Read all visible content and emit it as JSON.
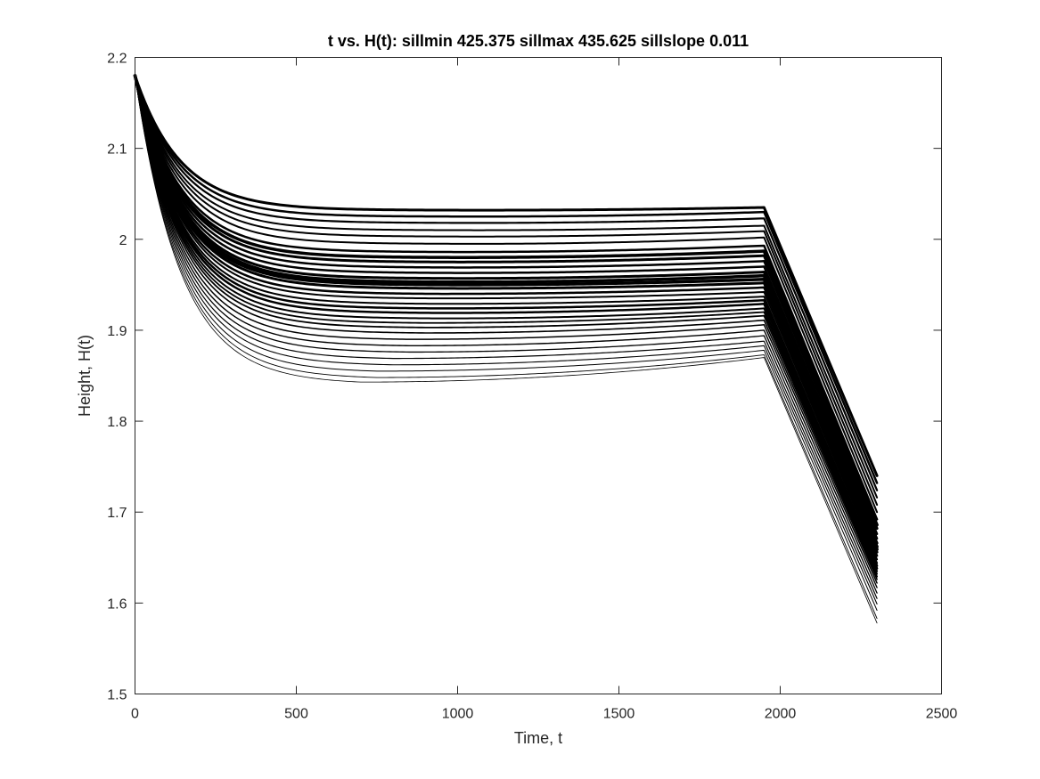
{
  "chart_data": {
    "type": "line",
    "title": "t vs. H(t): sillmin 425.375 sillmax 435.625 sillslope 0.011",
    "xlabel": "Time, t",
    "ylabel": "Height, H(t)",
    "xlim": [
      0,
      2500
    ],
    "ylim": [
      1.5,
      2.2
    ],
    "xticks": [
      0,
      500,
      1000,
      1500,
      2000,
      2500
    ],
    "yticks": [
      1.5,
      1.6,
      1.7,
      1.8,
      1.9,
      2.0,
      2.1,
      2.2
    ],
    "xtick_labels": [
      "0",
      "500",
      "1000",
      "1500",
      "2000",
      "2500"
    ],
    "ytick_labels": [
      "1.5",
      "1.6",
      "1.7",
      "1.8",
      "1.9",
      "2",
      "2.1",
      "2.2"
    ],
    "grid": false,
    "line_color": "#000000",
    "shared_points": {
      "t0": 0,
      "h0": 2.18,
      "t_break": 1950,
      "t_end": 2300
    },
    "series": [
      {
        "min_t": 1050,
        "h_min": 2.032,
        "h_break": 2.035,
        "h_end": 1.74,
        "width": 3.0
      },
      {
        "min_t": 1050,
        "h_min": 2.025,
        "h_break": 2.03,
        "h_end": 1.732,
        "width": 2.5
      },
      {
        "min_t": 1050,
        "h_min": 2.018,
        "h_break": 2.023,
        "h_end": 1.724,
        "width": 2.2
      },
      {
        "min_t": 1050,
        "h_min": 2.01,
        "h_break": 2.015,
        "h_end": 1.716,
        "width": 2.0
      },
      {
        "min_t": 1050,
        "h_min": 2.003,
        "h_break": 2.009,
        "h_end": 1.708,
        "width": 2.0
      },
      {
        "min_t": 1050,
        "h_min": 1.995,
        "h_break": 2.002,
        "h_end": 1.7,
        "width": 2.0
      },
      {
        "min_t": 1000,
        "h_min": 1.986,
        "h_break": 1.993,
        "h_end": 1.692,
        "width": 2.5
      },
      {
        "min_t": 1000,
        "h_min": 1.98,
        "h_break": 1.987,
        "h_end": 1.686,
        "width": 3.5
      },
      {
        "min_t": 1000,
        "h_min": 1.975,
        "h_break": 1.982,
        "h_end": 1.682,
        "width": 3.0
      },
      {
        "min_t": 1000,
        "h_min": 1.969,
        "h_break": 1.976,
        "h_end": 1.676,
        "width": 2.5
      },
      {
        "min_t": 1000,
        "h_min": 1.963,
        "h_break": 1.97,
        "h_end": 1.671,
        "width": 2.5
      },
      {
        "min_t": 1000,
        "h_min": 1.957,
        "h_break": 1.964,
        "h_end": 1.666,
        "width": 3.0
      },
      {
        "min_t": 1000,
        "h_min": 1.953,
        "h_break": 1.96,
        "h_end": 1.662,
        "width": 3.5
      },
      {
        "min_t": 1000,
        "h_min": 1.95,
        "h_break": 1.956,
        "h_end": 1.659,
        "width": 3.5
      },
      {
        "min_t": 1000,
        "h_min": 1.946,
        "h_break": 1.952,
        "h_end": 1.656,
        "width": 3.0
      },
      {
        "min_t": 950,
        "h_min": 1.94,
        "h_break": 1.947,
        "h_end": 1.652,
        "width": 2.5
      },
      {
        "min_t": 950,
        "h_min": 1.935,
        "h_break": 1.942,
        "h_end": 1.648,
        "width": 2.0
      },
      {
        "min_t": 950,
        "h_min": 1.929,
        "h_break": 1.937,
        "h_end": 1.644,
        "width": 2.0
      },
      {
        "min_t": 950,
        "h_min": 1.924,
        "h_break": 1.933,
        "h_end": 1.641,
        "width": 2.5
      },
      {
        "min_t": 950,
        "h_min": 1.919,
        "h_break": 1.929,
        "h_end": 1.638,
        "width": 2.5
      },
      {
        "min_t": 950,
        "h_min": 1.913,
        "h_break": 1.924,
        "h_end": 1.635,
        "width": 2.0
      },
      {
        "min_t": 900,
        "h_min": 1.908,
        "h_break": 1.92,
        "h_end": 1.632,
        "width": 1.8
      },
      {
        "min_t": 900,
        "h_min": 1.903,
        "h_break": 1.916,
        "h_end": 1.629,
        "width": 1.8
      },
      {
        "min_t": 900,
        "h_min": 1.897,
        "h_break": 1.911,
        "h_end": 1.626,
        "width": 1.6
      },
      {
        "min_t": 850,
        "h_min": 1.89,
        "h_break": 1.906,
        "h_end": 1.622,
        "width": 1.5
      },
      {
        "min_t": 850,
        "h_min": 1.883,
        "h_break": 1.9,
        "h_end": 1.617,
        "width": 1.4
      },
      {
        "min_t": 850,
        "h_min": 1.876,
        "h_break": 1.894,
        "h_end": 1.611,
        "width": 1.3
      },
      {
        "min_t": 800,
        "h_min": 1.869,
        "h_break": 1.888,
        "h_end": 1.605,
        "width": 1.2
      },
      {
        "min_t": 800,
        "h_min": 1.862,
        "h_break": 1.883,
        "h_end": 1.599,
        "width": 1.1
      },
      {
        "min_t": 750,
        "h_min": 1.855,
        "h_break": 1.878,
        "h_end": 1.592,
        "width": 1.0
      },
      {
        "min_t": 750,
        "h_min": 1.848,
        "h_break": 1.873,
        "h_end": 1.583,
        "width": 0.9
      },
      {
        "min_t": 700,
        "h_min": 1.843,
        "h_break": 1.87,
        "h_end": 1.578,
        "width": 0.8
      }
    ]
  }
}
